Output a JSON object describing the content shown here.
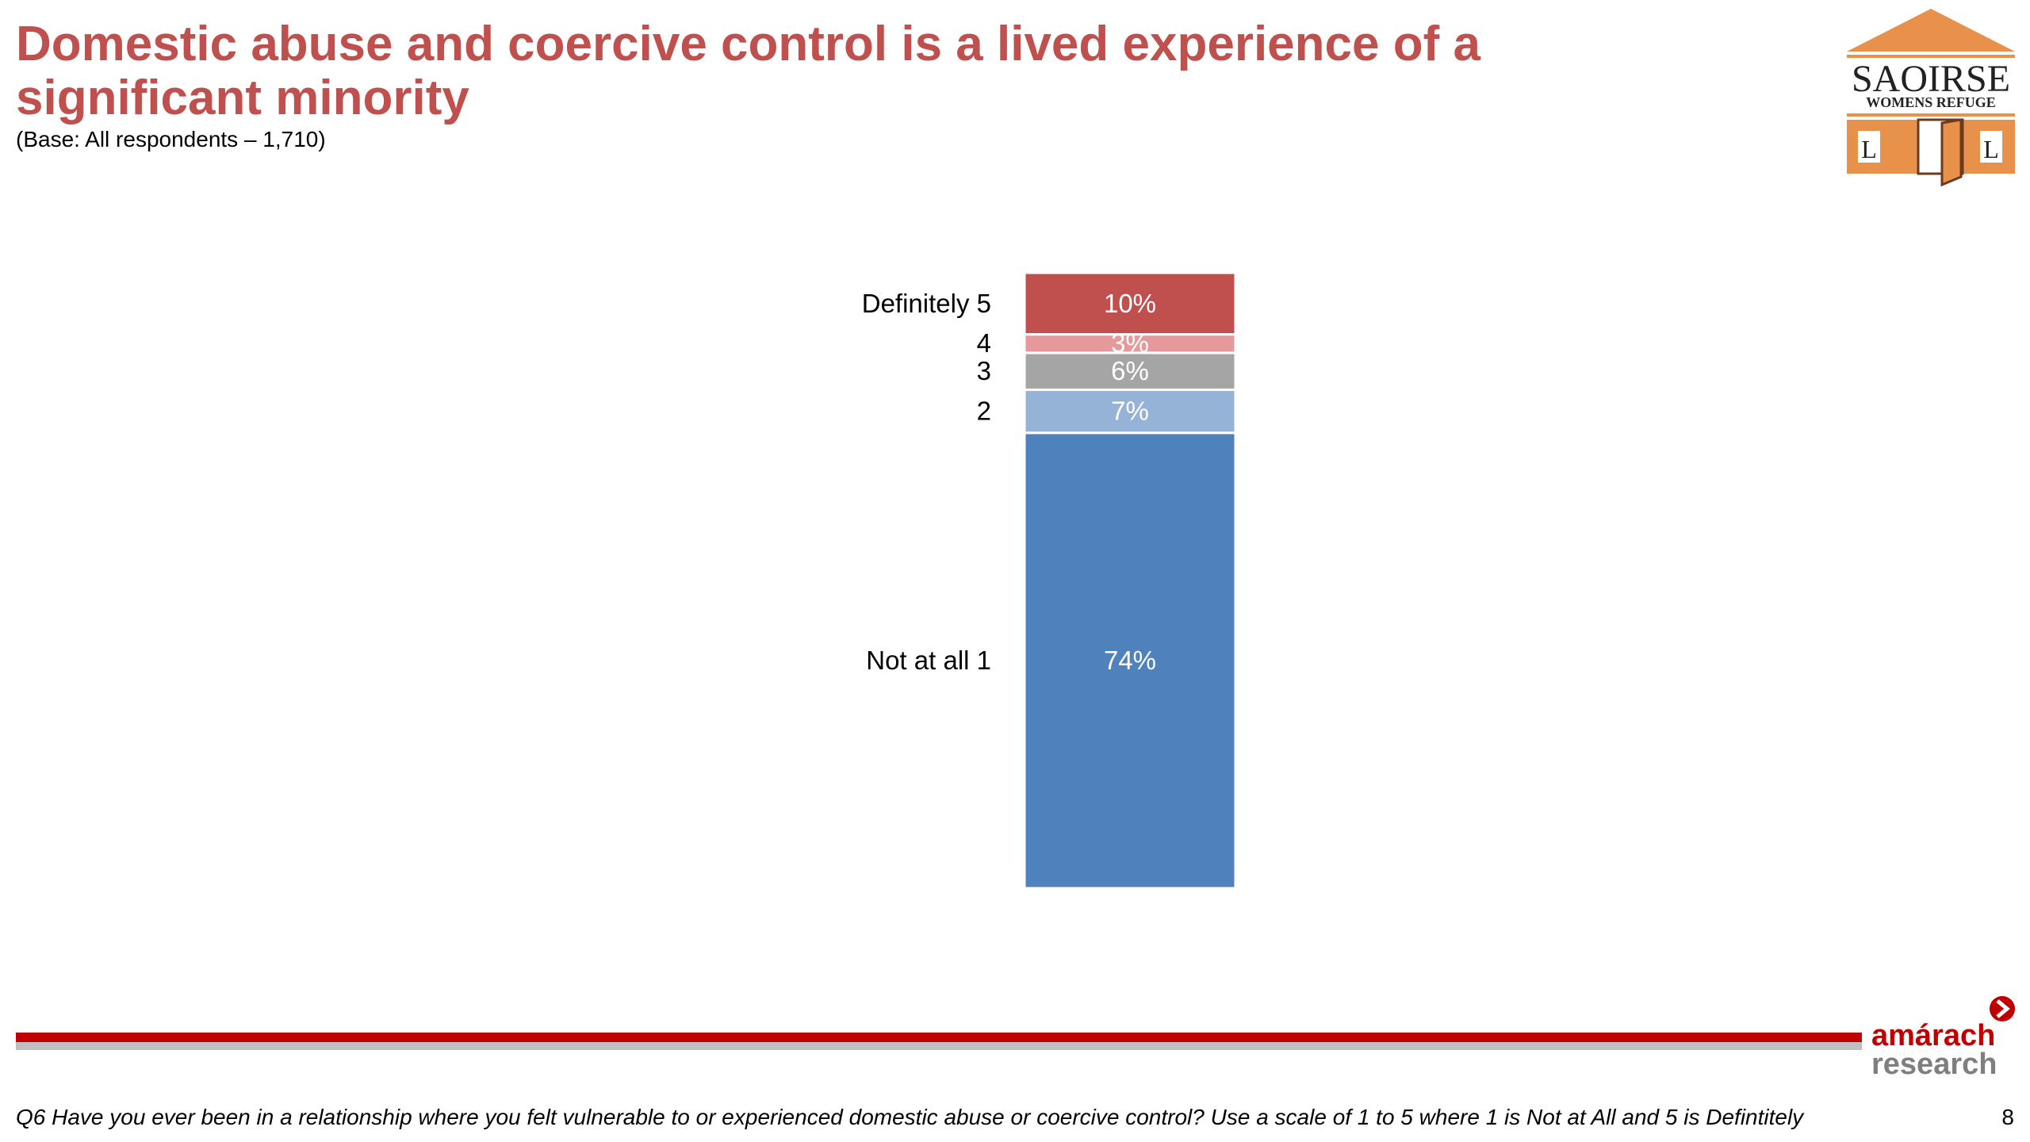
{
  "slide": {
    "title": "Domestic abuse and coercive control is a lived experience of a significant minority",
    "base_note": "(Base: All respondents – 1,710)",
    "footnote": "Q6 Have you ever been in a relationship where you felt vulnerable to or experienced domestic abuse or coercive control? Use a scale of 1 to 5 where 1 is Not at All and 5 is Defintitely",
    "page_number": "8"
  },
  "logo": {
    "name": "SAOIRSE",
    "tagline": "WOMENS REFUGE",
    "door_letter_left": "L",
    "door_letter_right": "L",
    "colors": {
      "orange": "#e8914a",
      "text": "#222222"
    }
  },
  "brand": {
    "name_line1": "amárach",
    "name_line2": "research",
    "colors": {
      "line1": "#c00000",
      "line2": "#7f7f7f"
    }
  },
  "colors": {
    "title": "#c0504d",
    "footer_rule": "#c00000",
    "footer_rule_shadow": "#bfbfbf"
  },
  "chart_data": {
    "type": "bar",
    "stacked": true,
    "orientation": "vertical",
    "categories": [
      "Not at all 1",
      "2",
      "3",
      "4",
      "Definitely 5"
    ],
    "values": [
      74,
      7,
      6,
      3,
      10
    ],
    "value_labels": [
      "74%",
      "7%",
      "6%",
      "3%",
      "10%"
    ],
    "unit": "%",
    "colors": [
      "#4f81bd",
      "#95b3d7",
      "#a5a5a5",
      "#e6999a",
      "#c0504d"
    ],
    "legend": "none",
    "grid": false,
    "title": "",
    "xlabel": "",
    "ylabel": ""
  }
}
